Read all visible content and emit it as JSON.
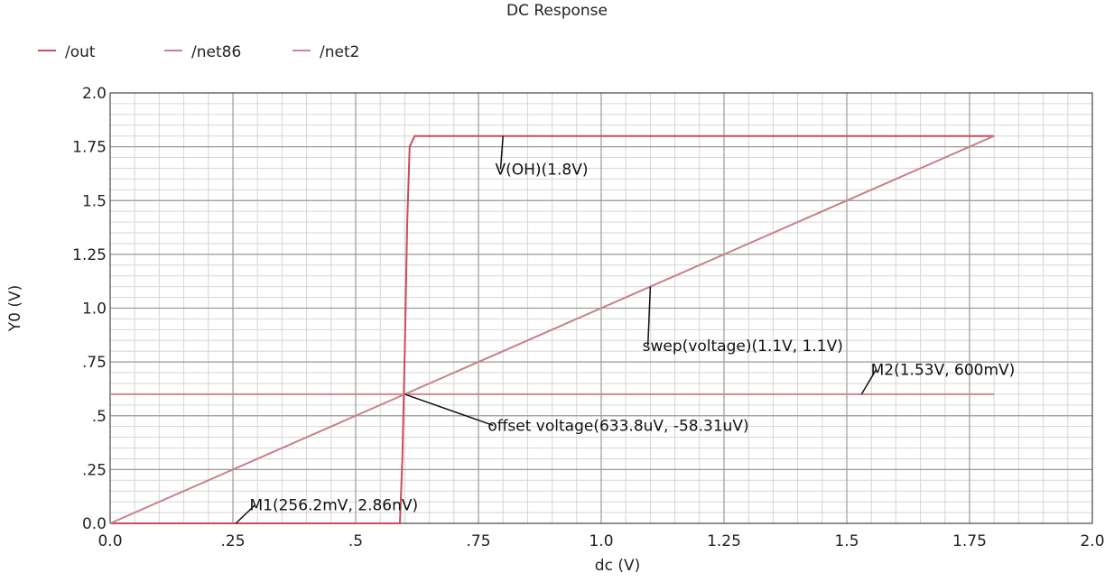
{
  "chart_data": {
    "type": "line",
    "title": "DC Response",
    "xlabel": "dc (V)",
    "ylabel": "Y0 (V)",
    "xlim": [
      0,
      2.0
    ],
    "ylim": [
      0,
      2.0
    ],
    "grid": true,
    "legend_position": "top-left",
    "x_ticks": [
      {
        "value": 0,
        "label": "0.0"
      },
      {
        "value": 0.25,
        "label": ".25"
      },
      {
        "value": 0.5,
        "label": ".5"
      },
      {
        "value": 0.75,
        "label": ".75"
      },
      {
        "value": 1.0,
        "label": "1.0"
      },
      {
        "value": 1.25,
        "label": "1.25"
      },
      {
        "value": 1.5,
        "label": "1.5"
      },
      {
        "value": 1.75,
        "label": "1.75"
      },
      {
        "value": 2.0,
        "label": "2.0"
      }
    ],
    "y_ticks": [
      {
        "value": 0,
        "label": "0.0"
      },
      {
        "value": 0.25,
        "label": ".25"
      },
      {
        "value": 0.5,
        "label": ".5"
      },
      {
        "value": 0.75,
        "label": ".75"
      },
      {
        "value": 1.0,
        "label": "1.0"
      },
      {
        "value": 1.25,
        "label": "1.25"
      },
      {
        "value": 1.5,
        "label": "1.5"
      },
      {
        "value": 1.75,
        "label": "1.75"
      },
      {
        "value": 2.0,
        "label": "2.0"
      }
    ],
    "series": [
      {
        "name": "/out",
        "color": "#cc4c5a",
        "x": [
          0,
          0.59,
          0.595,
          0.6,
          0.605,
          0.61,
          0.62,
          1.8
        ],
        "y": [
          0,
          0,
          0.3,
          0.8,
          1.4,
          1.75,
          1.8,
          1.8
        ]
      },
      {
        "name": "/net86",
        "color": "#c98088",
        "x": [
          0,
          1.8
        ],
        "y": [
          0,
          1.8
        ]
      },
      {
        "name": "/net2",
        "color": "#d08890",
        "x": [
          0,
          1.8
        ],
        "y": [
          0.6,
          0.6
        ]
      }
    ],
    "annotations": [
      {
        "text": "V(OH)(1.8V)",
        "px": 0.8,
        "py": 1.8,
        "tx": 0.795,
        "ty": 1.62
      },
      {
        "text": "swep(voltage)(1.1V, 1.1V)",
        "px": 1.1,
        "py": 1.1,
        "tx": 1.095,
        "ty": 0.8
      },
      {
        "text": "M2(1.53V, 600mV)",
        "px": 1.53,
        "py": 0.6,
        "tx": 1.56,
        "ty": 0.69
      },
      {
        "text": "offset voltage(633.8uV, -58.31uV)",
        "px": 0.6,
        "py": 0.6,
        "tx": 0.78,
        "ty": 0.43
      },
      {
        "text": "M1(256.2mV, 2.86nV)",
        "px": 0.256,
        "py": 0,
        "tx": 0.295,
        "ty": 0.06
      }
    ]
  }
}
